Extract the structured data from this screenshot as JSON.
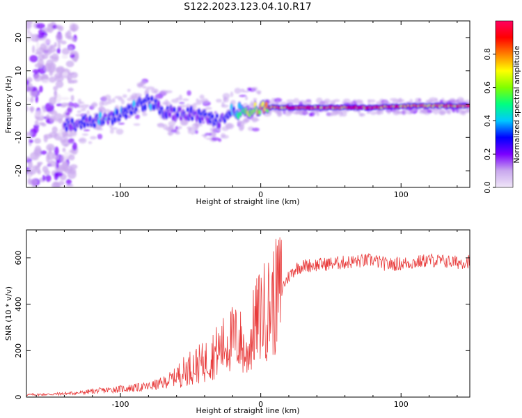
{
  "title": "S122.2023.123.04.10.R17",
  "chart_data": [
    {
      "type": "heatmap",
      "name": "spectrogram",
      "xlabel": "Height of straight line (km)",
      "ylabel": "Frequency (Hz)",
      "xlim": [
        -167,
        149
      ],
      "ylim": [
        -25,
        25
      ],
      "xticks": [
        -100,
        0,
        100
      ],
      "yticks": [
        -20,
        -10,
        0,
        10,
        20
      ],
      "colorbar": {
        "label": "Normalized spectral amplitude",
        "range": [
          0,
          1
        ],
        "ticks": [
          0.0,
          0.2,
          0.4,
          0.6,
          0.8
        ],
        "tick_labels": [
          "0.0",
          "0.2",
          "0.4",
          "0.6",
          "0.8"
        ],
        "colors": [
          "#f0e6f8",
          "#c9a8ee",
          "#7b00ff",
          "#0000ff",
          "#00c8ff",
          "#00ff80",
          "#80ff00",
          "#ffff00",
          "#ff8000",
          "#ff0000",
          "#ff0060"
        ]
      },
      "ridge": {
        "x": [
          -135,
          -120,
          -105,
          -90,
          -80,
          -70,
          -60,
          -50,
          -40,
          -30,
          -20,
          -10,
          0,
          10,
          20,
          50,
          80,
          110,
          149
        ],
        "freq": [
          -6,
          -5,
          -4,
          -1,
          1,
          -2,
          -3,
          -3,
          -4,
          -5,
          -2,
          -2,
          -1,
          -1,
          -1,
          -1,
          -1,
          -0.5,
          -0.5
        ],
        "amplitude": [
          0.3,
          0.32,
          0.33,
          0.35,
          0.35,
          0.3,
          0.3,
          0.28,
          0.27,
          0.28,
          0.35,
          0.6,
          0.75,
          0.92,
          0.95,
          0.95,
          0.95,
          0.9,
          0.85
        ]
      }
    },
    {
      "type": "line",
      "name": "snr",
      "xlabel": "Height of straight line (km)",
      "ylabel": "SNR (10 * v/v)",
      "xlim": [
        -167,
        149
      ],
      "ylim": [
        0,
        720
      ],
      "xticks": [
        -100,
        0,
        100
      ],
      "yticks": [
        0,
        200,
        400,
        600
      ],
      "color": "#e83a3a",
      "series": [
        {
          "name": "SNR",
          "x": [
            -167,
            -150,
            -140,
            -130,
            -120,
            -110,
            -100,
            -90,
            -80,
            -70,
            -60,
            -55,
            -50,
            -45,
            -40,
            -35,
            -30,
            -25,
            -20,
            -15,
            -10,
            -5,
            0,
            5,
            10,
            15,
            20,
            25,
            30,
            40,
            50,
            60,
            70,
            80,
            90,
            100,
            110,
            120,
            130,
            140,
            149
          ],
          "y": [
            10,
            12,
            15,
            18,
            25,
            30,
            35,
            40,
            45,
            60,
            90,
            110,
            130,
            140,
            150,
            180,
            200,
            230,
            250,
            250,
            170,
            300,
            360,
            380,
            420,
            470,
            520,
            555,
            565,
            570,
            575,
            580,
            585,
            590,
            570,
            575,
            580,
            590,
            585,
            580,
            585
          ]
        }
      ]
    }
  ]
}
